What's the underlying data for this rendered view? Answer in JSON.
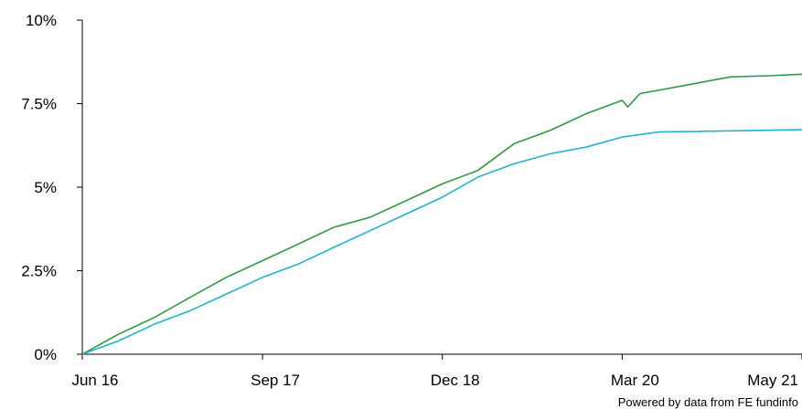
{
  "chart_data": {
    "type": "line",
    "title": "",
    "xlabel": "",
    "ylabel": "",
    "ylim": [
      0,
      10
    ],
    "y_ticks": [
      {
        "value": 0,
        "label": "0%"
      },
      {
        "value": 2.5,
        "label": "2.5%"
      },
      {
        "value": 5,
        "label": "5%"
      },
      {
        "value": 7.5,
        "label": "7.5%"
      },
      {
        "value": 10,
        "label": "10%"
      }
    ],
    "xlim": [
      "2016-06-01",
      "2021-05-31"
    ],
    "x_ticks": [
      {
        "value": "2016-06-01",
        "label": "Jun 16"
      },
      {
        "value": "2017-09-01",
        "label": "Sep 17"
      },
      {
        "value": "2018-12-01",
        "label": "Dec 18"
      },
      {
        "value": "2020-03-01",
        "label": "Mar 20"
      },
      {
        "value": "2021-05-31",
        "label": "May 21"
      }
    ],
    "grid": false,
    "legend": "none",
    "series": [
      {
        "color": "#2e9b3e",
        "points": [
          [
            "2016-06-01",
            0.0
          ],
          [
            "2016-09-01",
            0.6
          ],
          [
            "2016-12-01",
            1.1
          ],
          [
            "2017-03-01",
            1.7
          ],
          [
            "2017-06-01",
            2.3
          ],
          [
            "2017-09-01",
            2.8
          ],
          [
            "2017-12-01",
            3.3
          ],
          [
            "2018-03-01",
            3.8
          ],
          [
            "2018-06-01",
            4.1
          ],
          [
            "2018-09-01",
            4.6
          ],
          [
            "2018-12-01",
            5.1
          ],
          [
            "2019-03-01",
            5.5
          ],
          [
            "2019-06-01",
            6.3
          ],
          [
            "2019-09-01",
            6.7
          ],
          [
            "2019-12-01",
            7.2
          ],
          [
            "2020-03-01",
            7.6
          ],
          [
            "2020-03-15",
            7.4
          ],
          [
            "2020-04-15",
            7.8
          ],
          [
            "2020-06-01",
            7.9
          ],
          [
            "2020-09-01",
            8.1
          ],
          [
            "2020-12-01",
            8.3
          ],
          [
            "2021-03-01",
            8.33
          ],
          [
            "2021-05-31",
            8.38
          ]
        ]
      },
      {
        "color": "#1fb3d0",
        "points": [
          [
            "2016-06-01",
            0.0
          ],
          [
            "2016-09-01",
            0.4
          ],
          [
            "2016-12-01",
            0.9
          ],
          [
            "2017-03-01",
            1.3
          ],
          [
            "2017-06-01",
            1.8
          ],
          [
            "2017-09-01",
            2.3
          ],
          [
            "2017-12-01",
            2.7
          ],
          [
            "2018-03-01",
            3.2
          ],
          [
            "2018-06-01",
            3.7
          ],
          [
            "2018-09-01",
            4.2
          ],
          [
            "2018-12-01",
            4.7
          ],
          [
            "2019-03-01",
            5.3
          ],
          [
            "2019-06-01",
            5.7
          ],
          [
            "2019-09-01",
            6.0
          ],
          [
            "2019-12-01",
            6.2
          ],
          [
            "2020-03-01",
            6.5
          ],
          [
            "2020-06-01",
            6.65
          ],
          [
            "2021-05-31",
            6.72
          ]
        ]
      }
    ]
  },
  "credit": "Powered by data from FE fundinfo"
}
